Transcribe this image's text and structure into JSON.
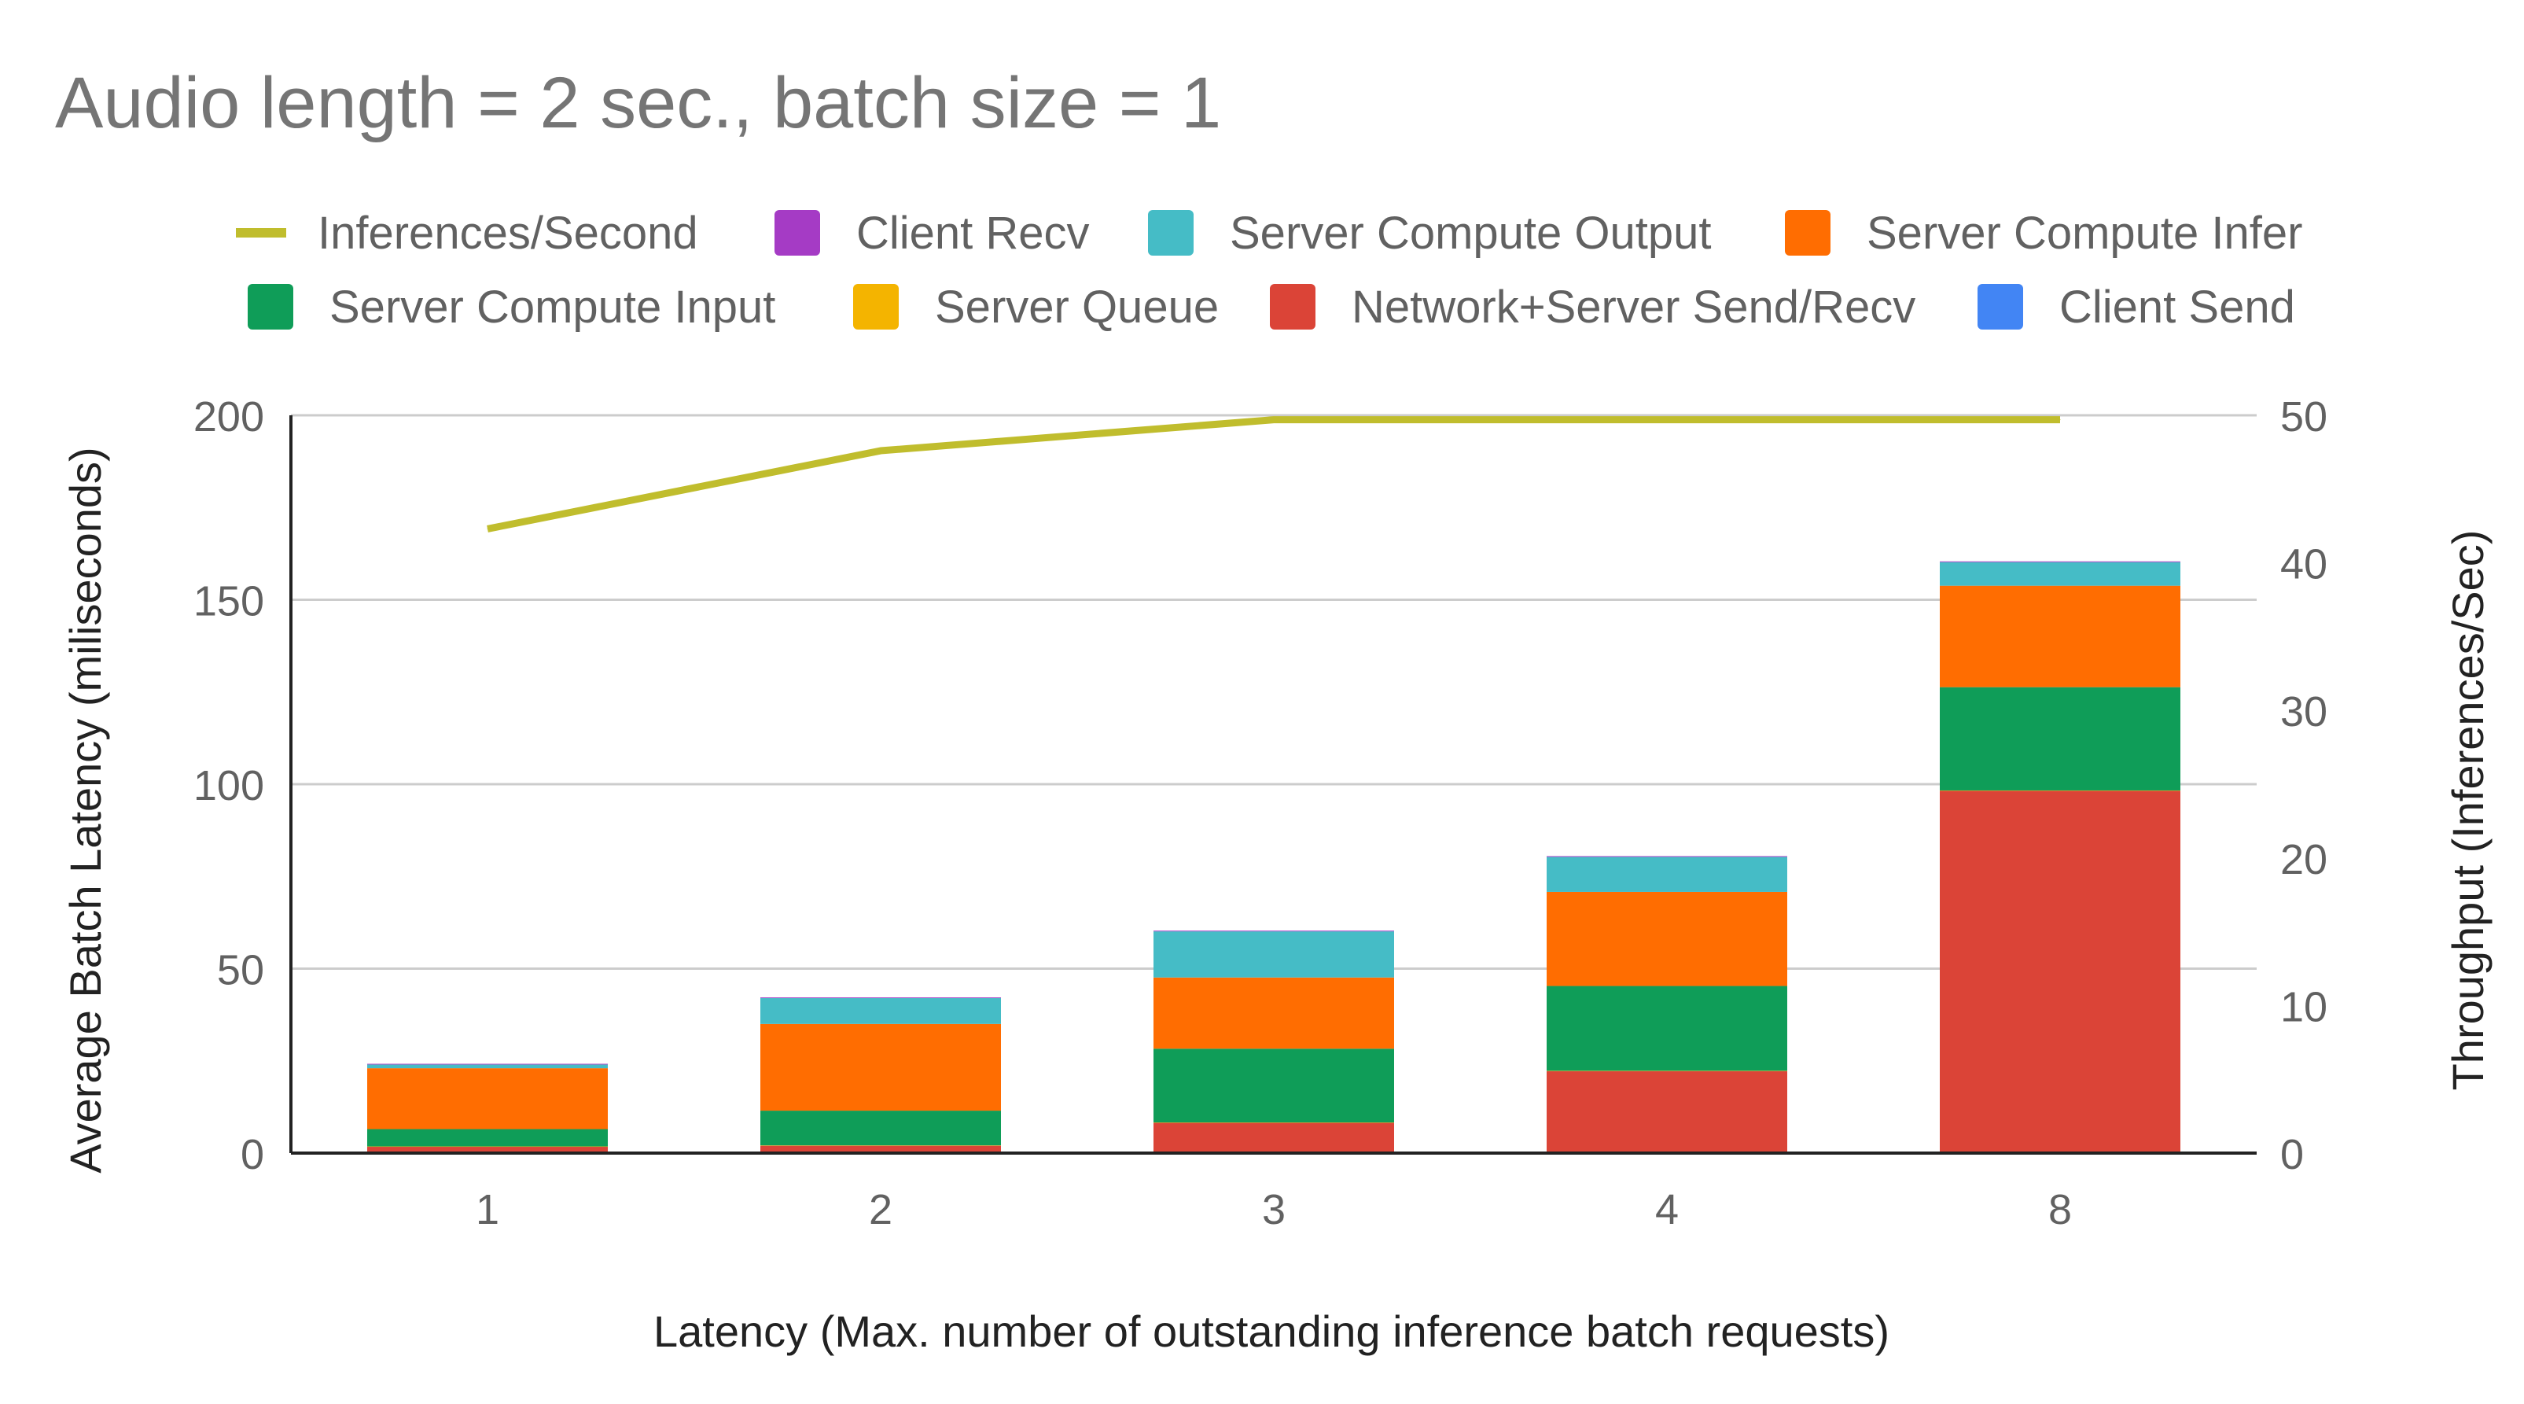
{
  "chart_data": {
    "type": "bar",
    "stacked": true,
    "title": "Audio length = 2 sec., batch size  = 1",
    "xlabel": "Latency (Max. number of outstanding inference batch requests)",
    "ylabel": "Average Batch Latency (miliseconds)",
    "y2label": "Throughput (Inferences/Sec)",
    "ylim": [
      0,
      200
    ],
    "y2lim": [
      0,
      50
    ],
    "yticks": [
      "0",
      "50",
      "100",
      "150",
      "200"
    ],
    "y2ticks": [
      "0",
      "10",
      "20",
      "30",
      "40",
      "50"
    ],
    "categories": [
      "1",
      "2",
      "3",
      "4",
      "8"
    ],
    "grid": true,
    "legend_position": "top",
    "legend": [
      {
        "name": "Inferences/Second",
        "color": "#c0bd2d",
        "shape": "line"
      },
      {
        "name": "Client Recv",
        "color": "#a53bc5",
        "shape": "box"
      },
      {
        "name": "Server Compute Output",
        "color": "#45bcc6",
        "shape": "box"
      },
      {
        "name": "Server Compute Infer",
        "color": "#ff6d01",
        "shape": "box"
      },
      {
        "name": "Server Compute Input",
        "color": "#0f9d58",
        "shape": "box"
      },
      {
        "name": "Server Queue",
        "color": "#f4b400",
        "shape": "box"
      },
      {
        "name": "Network+Server Send/Recv",
        "color": "#db4437",
        "shape": "box"
      },
      {
        "name": "Client Send",
        "color": "#4285f4",
        "shape": "box"
      }
    ],
    "series": [
      {
        "name": "Client Send",
        "color": "#4285f4",
        "values": [
          0.2,
          0.2,
          0.2,
          0.2,
          0.2
        ]
      },
      {
        "name": "Network+Server Send/Recv",
        "color": "#db4437",
        "values": [
          1.5,
          1.8,
          8.0,
          22.0,
          98.0
        ]
      },
      {
        "name": "Server Queue",
        "color": "#f4b400",
        "values": [
          0.1,
          0.1,
          0.1,
          0.1,
          0.1
        ]
      },
      {
        "name": "Server Compute Input",
        "color": "#0f9d58",
        "values": [
          4.7,
          9.4,
          20.0,
          23.0,
          28.0
        ]
      },
      {
        "name": "Server Compute Infer",
        "color": "#ff6d01",
        "values": [
          16.5,
          23.5,
          19.3,
          25.5,
          27.5
        ]
      },
      {
        "name": "Server Compute Output",
        "color": "#45bcc6",
        "values": [
          1.0,
          7.0,
          12.5,
          9.5,
          6.4
        ]
      },
      {
        "name": "Client Recv",
        "color": "#a53bc5",
        "values": [
          0.2,
          0.2,
          0.2,
          0.2,
          0.2
        ]
      }
    ],
    "line_series": {
      "name": "Inferences/Second",
      "axis": "right",
      "color": "#c0bd2d",
      "values": [
        42.3,
        47.6,
        49.7,
        49.7,
        49.7
      ]
    }
  }
}
